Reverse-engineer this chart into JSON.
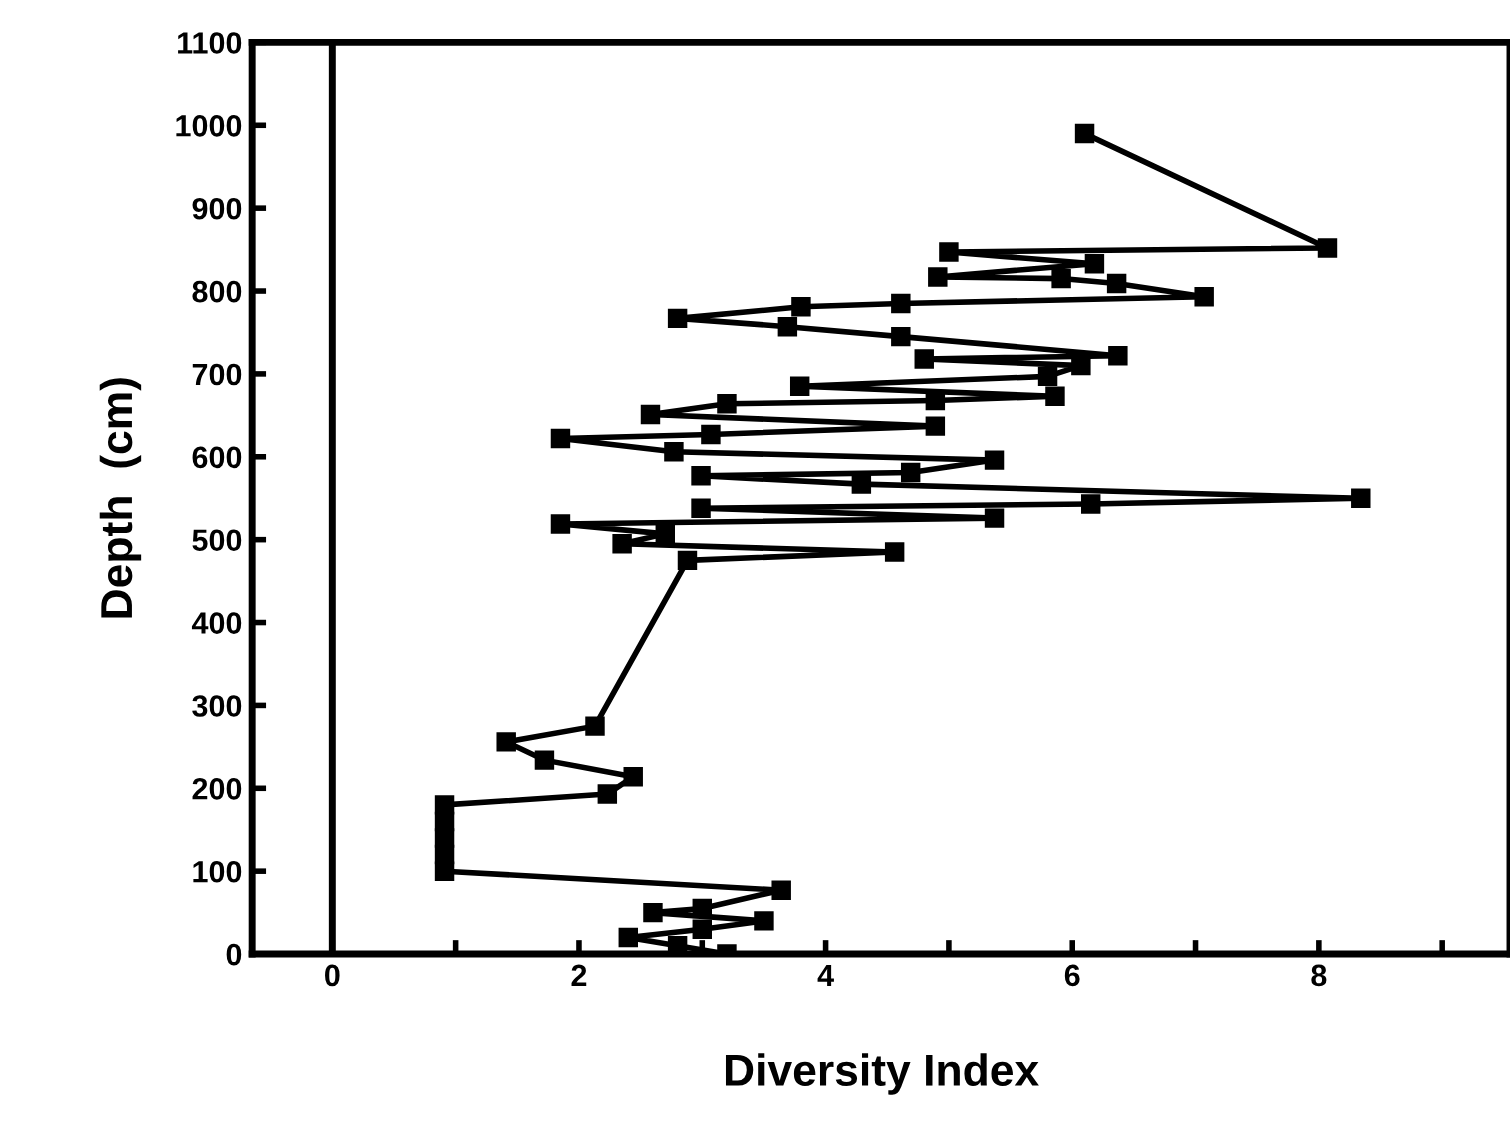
{
  "chart_data": {
    "type": "line",
    "xlabel": "Diversity Index",
    "ylabel": "Depth  (cm)",
    "x": [
      6.1,
      8.07,
      5.0,
      6.18,
      4.91,
      5.91,
      6.36,
      7.07,
      4.61,
      3.8,
      2.8,
      3.69,
      4.61,
      6.37,
      4.8,
      6.07,
      5.8,
      3.79,
      5.86,
      4.89,
      3.2,
      2.58,
      4.89,
      3.07,
      1.85,
      2.77,
      5.37,
      4.69,
      2.99,
      4.29,
      8.34,
      6.15,
      2.99,
      5.37,
      1.85,
      2.7,
      2.35,
      4.56,
      2.88,
      2.13,
      1.41,
      1.72,
      2.44,
      2.23,
      0.91,
      0.91,
      0.91,
      0.91,
      0.91,
      3.64,
      3.0,
      2.6,
      3.5,
      3.0,
      2.4,
      2.8,
      3.2
    ],
    "values": [
      990,
      852,
      847,
      833,
      817,
      815,
      809,
      793,
      785,
      781,
      767,
      757,
      745,
      722,
      718,
      710,
      697,
      685,
      673,
      668,
      664,
      651,
      637,
      627,
      622,
      606,
      596,
      581,
      577,
      567,
      550,
      543,
      538,
      526,
      519,
      507,
      495,
      485,
      475,
      275,
      256,
      234,
      214,
      193,
      180,
      160,
      140,
      120,
      100,
      77,
      55,
      50,
      40,
      30,
      20,
      10,
      0
    ],
    "color": "#000000",
    "marker": "square",
    "line_style": "solid",
    "xlim": [
      -0.65,
      9.55
    ],
    "xticks": [
      0,
      {
        "value": 1,
        "label": null
      },
      2,
      {
        "value": 3,
        "label": null
      },
      4,
      {
        "value": 5,
        "label": null
      },
      6,
      {
        "value": 7,
        "label": null
      },
      8,
      {
        "value": 9,
        "label": null
      }
    ],
    "ylim": [
      0,
      1100
    ],
    "yticks": [
      0,
      100,
      200,
      300,
      400,
      500,
      600,
      700,
      800,
      900,
      1000,
      1100
    ],
    "ref_lines": [
      {
        "axis": "x",
        "value": 0,
        "color": "#000000"
      }
    ],
    "grid": false,
    "legend": false
  }
}
